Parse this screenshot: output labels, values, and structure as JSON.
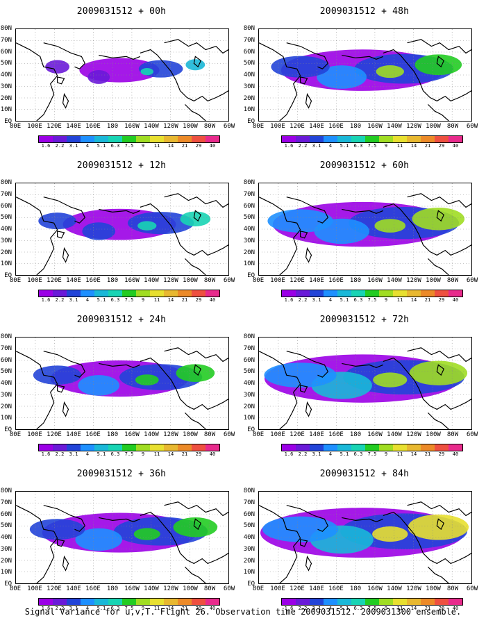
{
  "panels": [
    {
      "title": "2009031512 + 00h",
      "intensity": 0.15
    },
    {
      "title": "2009031512 + 48h",
      "intensity": 0.65
    },
    {
      "title": "2009031512 + 12h",
      "intensity": 0.35
    },
    {
      "title": "2009031512 + 60h",
      "intensity": 0.75
    },
    {
      "title": "2009031512 + 24h",
      "intensity": 0.5
    },
    {
      "title": "2009031512 + 72h",
      "intensity": 0.85
    },
    {
      "title": "2009031512 + 36h",
      "intensity": 0.6
    },
    {
      "title": "2009031512 + 84h",
      "intensity": 0.9
    }
  ],
  "lat_labels": [
    "80N",
    "70N",
    "60N",
    "50N",
    "40N",
    "30N",
    "20N",
    "10N",
    "EQ"
  ],
  "lon_labels": [
    "80E",
    "100E",
    "120E",
    "140E",
    "160E",
    "180",
    "160W",
    "140W",
    "120W",
    "100W",
    "80W",
    "60W"
  ],
  "colorbar": {
    "colors": [
      "#9b00e6",
      "#6a1ad8",
      "#2244d8",
      "#1e90ff",
      "#1ab8d8",
      "#18d4b4",
      "#22cc22",
      "#a0dd22",
      "#e8e030",
      "#e8b830",
      "#ec8a28",
      "#ee5040",
      "#e82a8c"
    ],
    "values": [
      "1.6",
      "2.2",
      "3.1",
      "4",
      "5.1",
      "6.3",
      "7.5",
      "9",
      "11",
      "14",
      "21",
      "29",
      "40"
    ]
  },
  "footer": "Signal Variance for u,v,T. Flight 26. Observation time 2009031512. 2009031300 ensemble."
}
